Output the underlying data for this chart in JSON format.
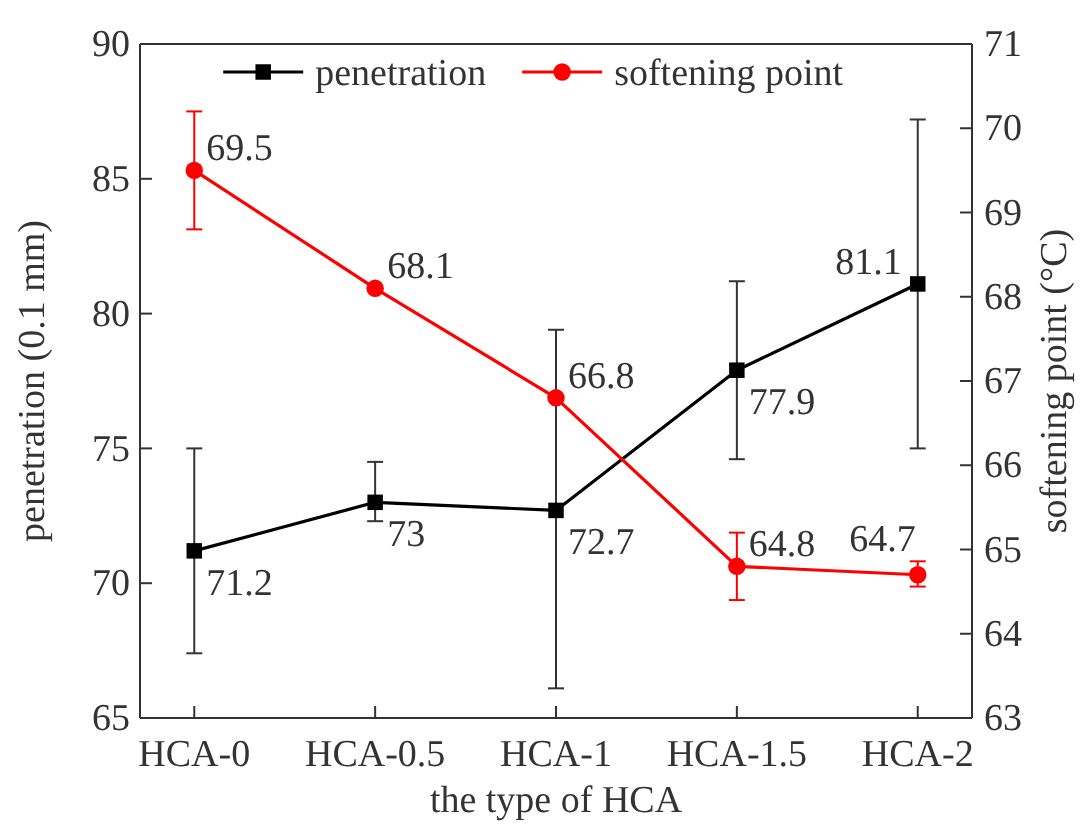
{
  "chart_data": {
    "type": "line",
    "xlabel": "the type of HCA",
    "ylabel": "penetration (0.1 mm)",
    "y2label": "softening point (°C)",
    "categories": [
      "HCA-0",
      "HCA-0.5",
      "HCA-1",
      "HCA-1.5",
      "HCA-2"
    ],
    "series": [
      {
        "name": "penetration",
        "color": "#000000",
        "marker": "square",
        "values": [
          71.2,
          73,
          72.7,
          77.9,
          81.1
        ],
        "errors": [
          [
            67.4,
            75.0
          ],
          [
            72.3,
            74.5
          ],
          [
            66.1,
            79.4
          ],
          [
            74.6,
            81.2
          ],
          [
            75.0,
            87.2
          ]
        ]
      },
      {
        "name": "softening point",
        "color": "#ff0000",
        "marker": "circle",
        "axis": "y2",
        "values": [
          69.5,
          68.1,
          66.8,
          64.8,
          64.7
        ],
        "errors": [
          [
            68.8,
            70.2
          ],
          null,
          null,
          [
            64.4,
            65.2
          ],
          [
            64.56,
            64.86
          ]
        ]
      }
    ],
    "ylim": [
      65,
      90
    ],
    "yticks": [
      65,
      70,
      75,
      80,
      85,
      90
    ],
    "y2lim": [
      63,
      71
    ],
    "y2ticks": [
      63,
      64,
      65,
      66,
      67,
      68,
      69,
      70,
      71
    ],
    "data_labels": true,
    "legend": "top",
    "grid": false,
    "line_style": "solid"
  }
}
